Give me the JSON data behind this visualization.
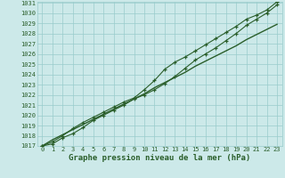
{
  "title": "Graphe pression niveau de la mer (hPa)",
  "x_hours": [
    0,
    1,
    2,
    3,
    4,
    5,
    6,
    7,
    8,
    9,
    10,
    11,
    12,
    13,
    14,
    15,
    16,
    17,
    18,
    19,
    20,
    21,
    22,
    23
  ],
  "line_upper": [
    1017.0,
    1017.4,
    1018.0,
    1018.7,
    1019.3,
    1019.8,
    1020.3,
    1020.8,
    1021.3,
    1021.7,
    1022.5,
    1023.4,
    1024.5,
    1025.2,
    1025.7,
    1026.3,
    1026.9,
    1027.5,
    1028.1,
    1028.7,
    1029.4,
    1029.8,
    1030.3,
    1031.1
  ],
  "line_lower": [
    1017.0,
    1017.2,
    1017.8,
    1018.2,
    1018.8,
    1019.5,
    1020.0,
    1020.5,
    1021.0,
    1021.6,
    1022.0,
    1022.5,
    1023.1,
    1023.8,
    1024.6,
    1025.4,
    1026.0,
    1026.6,
    1027.3,
    1028.0,
    1028.8,
    1029.4,
    1030.0,
    1030.8
  ],
  "line_straight": [
    1017.0,
    1017.6,
    1018.1,
    1018.6,
    1019.1,
    1019.6,
    1020.1,
    1020.6,
    1021.1,
    1021.6,
    1022.1,
    1022.7,
    1023.2,
    1023.7,
    1024.2,
    1024.8,
    1025.3,
    1025.8,
    1026.3,
    1026.8,
    1027.4,
    1027.9,
    1028.4,
    1028.9
  ],
  "ylim_min": 1017,
  "ylim_max": 1031,
  "yticks": [
    1017,
    1018,
    1019,
    1020,
    1021,
    1022,
    1023,
    1024,
    1025,
    1026,
    1027,
    1028,
    1029,
    1030,
    1031
  ],
  "xticks": [
    0,
    1,
    2,
    3,
    4,
    5,
    6,
    7,
    8,
    9,
    10,
    11,
    12,
    13,
    14,
    15,
    16,
    17,
    18,
    19,
    20,
    21,
    22,
    23
  ],
  "line_color": "#2a5e2a",
  "bg_color": "#cce9e9",
  "grid_color": "#99cccc",
  "title_fontsize": 6.5,
  "tick_fontsize": 5.0
}
